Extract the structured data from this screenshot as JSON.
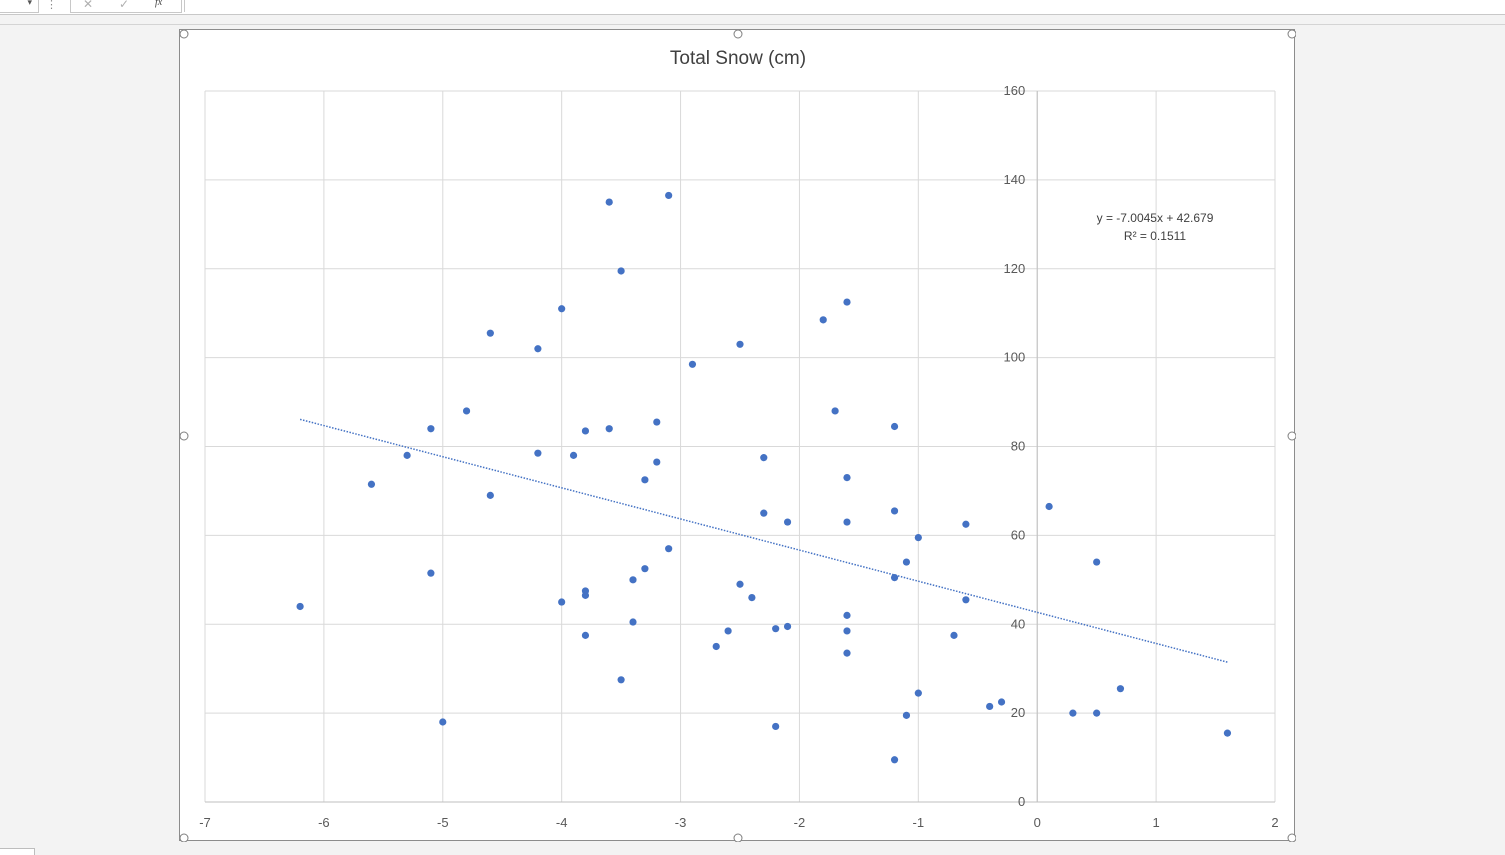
{
  "formula_bar": {
    "dropdown_glyph": "▾",
    "separator_glyph": "⋮",
    "cancel_glyph": "✕",
    "enter_glyph": "✓",
    "fx_glyph": "fx",
    "formula_value": ""
  },
  "icons": {
    "cancel": "x-icon",
    "enter": "check-icon",
    "function": "fx-icon",
    "dropdown": "chevron-down-icon"
  },
  "colors": {
    "marker": "#4472c4",
    "trendline": "#4472c4",
    "gridline": "#d9d9d9",
    "axis_text": "#595959",
    "title_text": "#404040"
  },
  "chart_data": {
    "type": "scatter",
    "title": "Total Snow (cm)",
    "xlabel": "",
    "ylabel": "",
    "xlim": [
      -7,
      2
    ],
    "ylim": [
      0,
      160
    ],
    "x_ticks": [
      -7,
      -6,
      -5,
      -4,
      -3,
      -2,
      -1,
      0,
      1,
      2
    ],
    "y_ticks": [
      0,
      20,
      40,
      60,
      80,
      100,
      120,
      140,
      160
    ],
    "grid": true,
    "y_axis_crosses_at_x": 0,
    "legend": "none",
    "trendline": {
      "type": "linear",
      "style": "dotted",
      "slope": -7.0045,
      "intercept": 42.679,
      "x_range": [
        -6.2,
        1.6
      ],
      "equation_label": "y = -7.0045x + 42.679",
      "r2_label": "R² = 0.1511"
    },
    "series": [
      {
        "points": [
          [
            -6.2,
            44
          ],
          [
            -5.6,
            71.5
          ],
          [
            -5.3,
            78
          ],
          [
            -5.1,
            84
          ],
          [
            -5.1,
            51.5
          ],
          [
            -5.0,
            18
          ],
          [
            -4.8,
            88
          ],
          [
            -4.6,
            105.5
          ],
          [
            -4.6,
            69
          ],
          [
            -4.2,
            102
          ],
          [
            -4.2,
            78.5
          ],
          [
            -4.0,
            111
          ],
          [
            -4.0,
            45
          ],
          [
            -3.9,
            78
          ],
          [
            -3.8,
            83.5
          ],
          [
            -3.8,
            47.5
          ],
          [
            -3.8,
            46.5
          ],
          [
            -3.8,
            37.5
          ],
          [
            -3.6,
            135
          ],
          [
            -3.6,
            84
          ],
          [
            -3.5,
            119.5
          ],
          [
            -3.5,
            27.5
          ],
          [
            -3.4,
            50
          ],
          [
            -3.4,
            40.5
          ],
          [
            -3.3,
            72.5
          ],
          [
            -3.3,
            52.5
          ],
          [
            -3.2,
            85.5
          ],
          [
            -3.2,
            76.5
          ],
          [
            -3.1,
            136.5
          ],
          [
            -3.1,
            57
          ],
          [
            -2.9,
            98.5
          ],
          [
            -2.7,
            35
          ],
          [
            -2.6,
            38.5
          ],
          [
            -2.5,
            103
          ],
          [
            -2.5,
            49
          ],
          [
            -2.4,
            46
          ],
          [
            -2.3,
            77.5
          ],
          [
            -2.3,
            65
          ],
          [
            -2.2,
            39
          ],
          [
            -2.2,
            17
          ],
          [
            -2.1,
            63
          ],
          [
            -2.1,
            39.5
          ],
          [
            -1.8,
            108.5
          ],
          [
            -1.7,
            88
          ],
          [
            -1.6,
            112.5
          ],
          [
            -1.6,
            73
          ],
          [
            -1.6,
            63
          ],
          [
            -1.6,
            42
          ],
          [
            -1.6,
            38.5
          ],
          [
            -1.6,
            33.5
          ],
          [
            -1.2,
            84.5
          ],
          [
            -1.2,
            65.5
          ],
          [
            -1.2,
            50.5
          ],
          [
            -1.2,
            9.5
          ],
          [
            -1.1,
            54
          ],
          [
            -1.1,
            19.5
          ],
          [
            -1.0,
            59.5
          ],
          [
            -1.0,
            24.5
          ],
          [
            -0.7,
            37.5
          ],
          [
            -0.6,
            62.5
          ],
          [
            -0.6,
            45.5
          ],
          [
            -0.4,
            21.5
          ],
          [
            -0.3,
            22.5
          ],
          [
            0.1,
            66.5
          ],
          [
            0.3,
            20
          ],
          [
            0.5,
            54
          ],
          [
            0.5,
            20
          ],
          [
            0.7,
            25.5
          ],
          [
            1.6,
            15.5
          ]
        ]
      }
    ]
  }
}
